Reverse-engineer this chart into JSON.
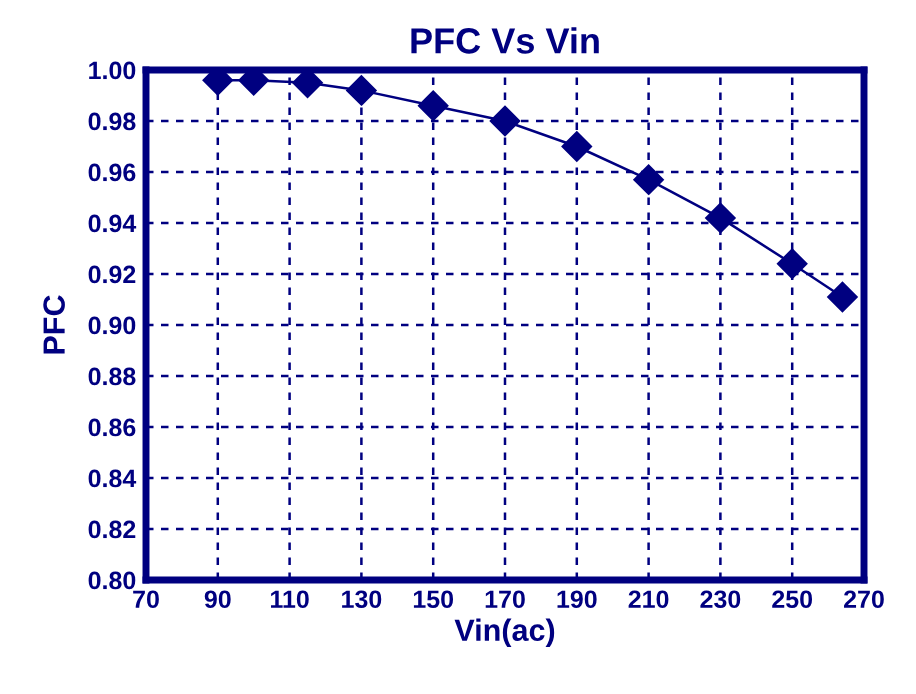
{
  "chart_data": {
    "type": "line",
    "title": "PFC Vs Vin",
    "xlabel": "Vin(ac)",
    "ylabel": "PFC",
    "x": [
      90,
      100,
      115,
      130,
      150,
      170,
      190,
      210,
      230,
      250,
      264
    ],
    "series": [
      {
        "color": "#000080",
        "values": [
          0.996,
          0.996,
          0.995,
          0.992,
          0.986,
          0.98,
          0.97,
          0.957,
          0.942,
          0.924,
          0.911
        ]
      }
    ],
    "xlim": [
      70,
      270
    ],
    "xticks": [
      70,
      90,
      110,
      130,
      150,
      170,
      190,
      210,
      230,
      250,
      270
    ],
    "ylim": [
      0.8,
      1.0
    ],
    "yticks": [
      {
        "value": 0.8,
        "label": "0.80"
      },
      {
        "value": 0.82,
        "label": "0.82"
      },
      {
        "value": 0.84,
        "label": "0.84"
      },
      {
        "value": 0.86,
        "label": "0.86"
      },
      {
        "value": 0.88,
        "label": "0.88"
      },
      {
        "value": 0.9,
        "label": "0.90"
      },
      {
        "value": 0.92,
        "label": "0.92"
      },
      {
        "value": 0.94,
        "label": "0.94"
      },
      {
        "value": 0.96,
        "label": "0.96"
      },
      {
        "value": 0.98,
        "label": "0.98"
      },
      {
        "value": 1.0,
        "label": "1.00"
      }
    ],
    "grid": true,
    "marker": "diamond",
    "line_style": "solid",
    "legend": false
  }
}
